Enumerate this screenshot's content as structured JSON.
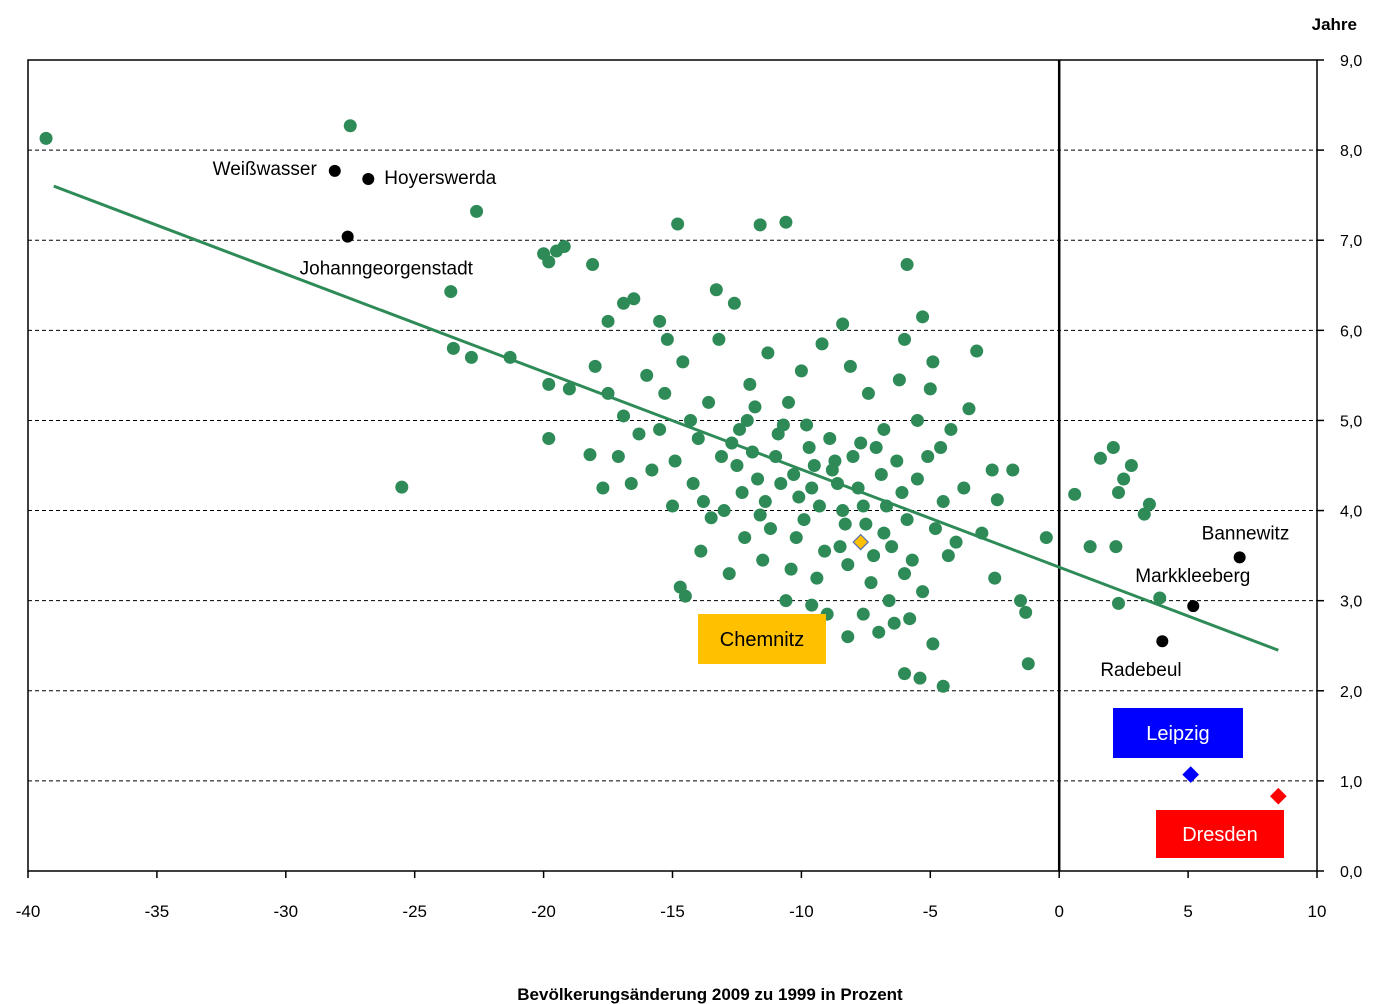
{
  "chart_data": {
    "type": "scatter",
    "xlabel": "Bevölkerungsänderung 2009 zu 1999 in Prozent",
    "ylabel": "Jahre",
    "xlim": [
      -40,
      10
    ],
    "ylim": [
      0,
      9
    ],
    "x_ticks": [
      "-40",
      "-35",
      "-30",
      "-25",
      "-20",
      "-15",
      "-10",
      "-5",
      "0",
      "5",
      "10"
    ],
    "y_ticks": [
      "0,0",
      "1,0",
      "2,0",
      "3,0",
      "4,0",
      "5,0",
      "6,0",
      "7,0",
      "8,0",
      "9,0"
    ],
    "grid": "dashed horizontal lines",
    "colors": {
      "points": "#2e8b57",
      "trend": "#2e8b57",
      "labeled": "#000000",
      "chemnitz": "#ffc000",
      "leipzig": "#0000ff",
      "dresden": "#ff0000"
    },
    "trendline": {
      "x": [
        -39,
        8.5
      ],
      "y": [
        7.6,
        2.45
      ]
    },
    "highlighted": [
      {
        "name": "Chemnitz",
        "x": -7.7,
        "y": 3.65,
        "color": "#ffc000",
        "marker": "diamond",
        "box": true
      },
      {
        "name": "Leipzig",
        "x": 5.1,
        "y": 1.07,
        "color": "#0000ff",
        "marker": "diamond",
        "box": true
      },
      {
        "name": "Dresden",
        "x": 8.5,
        "y": 0.83,
        "color": "#ff0000",
        "marker": "diamond",
        "box": true
      }
    ],
    "labeled_points": [
      {
        "name": "Weißwasser",
        "x": -28.1,
        "y": 7.77
      },
      {
        "name": "Hoyerswerda",
        "x": -26.8,
        "y": 7.68
      },
      {
        "name": "Johanngeorgenstadt",
        "x": -27.6,
        "y": 7.04
      },
      {
        "name": "Bannewitz",
        "x": 7.0,
        "y": 3.48
      },
      {
        "name": "Markkleeberg",
        "x": 5.2,
        "y": 2.94
      },
      {
        "name": "Radebeul",
        "x": 4.0,
        "y": 2.55
      }
    ],
    "points": [
      [
        -39.3,
        8.13
      ],
      [
        -27.5,
        8.27
      ],
      [
        -22.6,
        7.32
      ],
      [
        -23.6,
        6.43
      ],
      [
        -25.5,
        4.26
      ],
      [
        -20.0,
        6.85
      ],
      [
        -19.8,
        6.76
      ],
      [
        -19.5,
        6.88
      ],
      [
        -19.2,
        6.93
      ],
      [
        -18.1,
        6.73
      ],
      [
        -17.5,
        6.1
      ],
      [
        -16.9,
        6.3
      ],
      [
        -16.5,
        6.35
      ],
      [
        -23.5,
        5.8
      ],
      [
        -22.8,
        5.7
      ],
      [
        -21.3,
        5.7
      ],
      [
        -19.8,
        5.4
      ],
      [
        -19.8,
        4.8
      ],
      [
        -19.0,
        5.35
      ],
      [
        -18.0,
        5.6
      ],
      [
        -17.5,
        5.3
      ],
      [
        -15.5,
        6.1
      ],
      [
        -15.2,
        5.9
      ],
      [
        -14.8,
        7.18
      ],
      [
        -11.6,
        7.17
      ],
      [
        -10.6,
        7.2
      ],
      [
        -5.9,
        6.73
      ],
      [
        -13.3,
        6.45
      ],
      [
        -12.6,
        6.3
      ],
      [
        -8.4,
        6.07
      ],
      [
        -5.3,
        6.15
      ],
      [
        -3.2,
        5.77
      ],
      [
        -3.5,
        5.13
      ],
      [
        -1.8,
        4.45
      ],
      [
        -2.6,
        4.45
      ],
      [
        -2.4,
        4.12
      ],
      [
        -3.0,
        3.75
      ],
      [
        -2.5,
        3.25
      ],
      [
        -1.5,
        3.0
      ],
      [
        -1.2,
        2.3
      ],
      [
        -1.3,
        2.87
      ],
      [
        -0.5,
        3.7
      ],
      [
        0.6,
        4.18
      ],
      [
        1.2,
        3.6
      ],
      [
        1.6,
        4.58
      ],
      [
        2.1,
        4.7
      ],
      [
        2.8,
        4.5
      ],
      [
        2.3,
        4.2
      ],
      [
        2.5,
        4.35
      ],
      [
        2.2,
        3.6
      ],
      [
        3.3,
        3.96
      ],
      [
        3.5,
        4.07
      ],
      [
        3.9,
        3.03
      ],
      [
        2.3,
        2.97
      ],
      [
        -4.9,
        2.52
      ],
      [
        -4.5,
        2.05
      ],
      [
        -5.4,
        2.14
      ],
      [
        -6.0,
        2.19
      ],
      [
        -8.2,
        2.6
      ],
      [
        -7.6,
        2.85
      ],
      [
        -14.7,
        3.15
      ],
      [
        -14.5,
        3.05
      ],
      [
        -12.2,
        3.7
      ],
      [
        -10.6,
        3.0
      ],
      [
        -9.6,
        2.95
      ],
      [
        -18.2,
        4.62
      ],
      [
        -17.7,
        4.25
      ],
      [
        -16.6,
        4.3
      ],
      [
        -15.5,
        4.9
      ],
      [
        -14.9,
        4.55
      ],
      [
        -14.2,
        4.3
      ],
      [
        -13.8,
        4.1
      ],
      [
        -13.5,
        3.92
      ],
      [
        -13.0,
        4.0
      ],
      [
        -12.5,
        4.5
      ],
      [
        -12.4,
        4.9
      ],
      [
        -12.1,
        5.0
      ],
      [
        -11.9,
        4.65
      ],
      [
        -11.7,
        4.35
      ],
      [
        -11.4,
        4.1
      ],
      [
        -11.2,
        3.8
      ],
      [
        -11.0,
        4.6
      ],
      [
        -10.7,
        4.95
      ],
      [
        -10.5,
        5.2
      ],
      [
        -10.3,
        4.4
      ],
      [
        -10.1,
        4.15
      ],
      [
        -9.9,
        3.9
      ],
      [
        -9.7,
        4.7
      ],
      [
        -9.5,
        4.5
      ],
      [
        -9.3,
        4.05
      ],
      [
        -9.1,
        3.55
      ],
      [
        -8.9,
        4.8
      ],
      [
        -8.6,
        4.3
      ],
      [
        -8.4,
        4.0
      ],
      [
        -8.2,
        3.4
      ],
      [
        -8.0,
        4.6
      ],
      [
        -7.8,
        4.25
      ],
      [
        -7.5,
        3.85
      ],
      [
        -7.3,
        3.2
      ],
      [
        -7.1,
        4.7
      ],
      [
        -6.9,
        4.4
      ],
      [
        -6.7,
        4.05
      ],
      [
        -6.5,
        3.6
      ],
      [
        -6.3,
        4.55
      ],
      [
        -6.1,
        4.2
      ],
      [
        -5.9,
        3.9
      ],
      [
        -5.7,
        3.45
      ],
      [
        -5.5,
        4.35
      ],
      [
        -5.3,
        3.1
      ],
      [
        -5.1,
        4.6
      ],
      [
        -4.8,
        3.8
      ],
      [
        -4.5,
        4.1
      ],
      [
        -4.3,
        3.5
      ],
      [
        -4.2,
        4.9
      ],
      [
        -6.6,
        3.0
      ],
      [
        -6.4,
        2.75
      ],
      [
        -5.8,
        2.8
      ],
      [
        -7.0,
        2.65
      ],
      [
        -9.0,
        2.85
      ],
      [
        -12.8,
        3.3
      ],
      [
        -13.9,
        3.55
      ],
      [
        -15.0,
        4.05
      ],
      [
        -16.0,
        5.5
      ],
      [
        -16.3,
        4.85
      ],
      [
        -14.6,
        5.65
      ],
      [
        -13.2,
        5.9
      ],
      [
        -12.0,
        5.4
      ],
      [
        -11.3,
        5.75
      ],
      [
        -10.0,
        5.55
      ],
      [
        -9.2,
        5.85
      ],
      [
        -8.1,
        5.6
      ],
      [
        -7.4,
        5.3
      ],
      [
        -6.2,
        5.45
      ],
      [
        -6.0,
        5.9
      ],
      [
        -5.0,
        5.35
      ],
      [
        -4.9,
        5.65
      ],
      [
        -5.5,
        5.0
      ],
      [
        -4.6,
        4.7
      ],
      [
        -3.7,
        4.25
      ],
      [
        -13.6,
        5.2
      ],
      [
        -14.3,
        5.0
      ],
      [
        -12.7,
        4.75
      ],
      [
        -11.8,
        5.15
      ],
      [
        -10.9,
        4.85
      ],
      [
        -9.8,
        4.95
      ],
      [
        -8.7,
        4.55
      ],
      [
        -7.7,
        4.75
      ],
      [
        -6.8,
        4.9
      ],
      [
        -11.5,
        3.45
      ],
      [
        -10.4,
        3.35
      ],
      [
        -9.4,
        3.25
      ],
      [
        -8.5,
        3.6
      ],
      [
        -7.2,
        3.5
      ],
      [
        -6.0,
        3.3
      ],
      [
        -4.0,
        3.65
      ],
      [
        -13.1,
        4.6
      ],
      [
        -12.3,
        4.2
      ],
      [
        -11.6,
        3.95
      ],
      [
        -10.8,
        4.3
      ],
      [
        -10.2,
        3.7
      ],
      [
        -9.6,
        4.25
      ],
      [
        -8.8,
        4.45
      ],
      [
        -8.3,
        3.85
      ],
      [
        -7.6,
        4.05
      ],
      [
        -6.8,
        3.75
      ],
      [
        -15.8,
        4.45
      ],
      [
        -16.9,
        5.05
      ],
      [
        -17.1,
        4.6
      ],
      [
        -15.3,
        5.3
      ],
      [
        -14.0,
        4.8
      ]
    ]
  }
}
